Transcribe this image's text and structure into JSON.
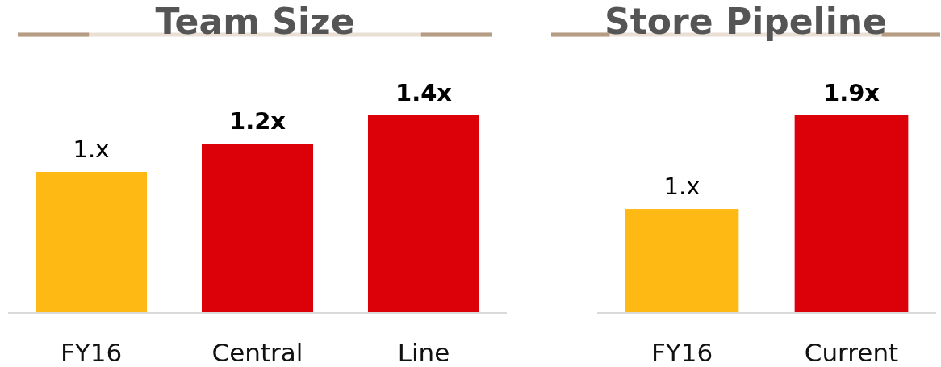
{
  "chart_data": [
    {
      "type": "bar",
      "title": "Team Size",
      "categories": [
        "FY16",
        "Central",
        "Line"
      ],
      "values": [
        1,
        1.2,
        1.4
      ],
      "colors": [
        "#ffb914",
        "#dc0009",
        "#dc0009"
      ],
      "value_labels": [
        "1.x",
        "1.2x",
        "1.4x"
      ]
    },
    {
      "type": "bar",
      "title": "Store Pipeline",
      "categories": [
        "FY16",
        "Current"
      ],
      "values": [
        1,
        1.9
      ],
      "colors": [
        "#ffb914",
        "#dc0009"
      ],
      "value_labels": [
        "1.x",
        "1.9x"
      ]
    }
  ]
}
